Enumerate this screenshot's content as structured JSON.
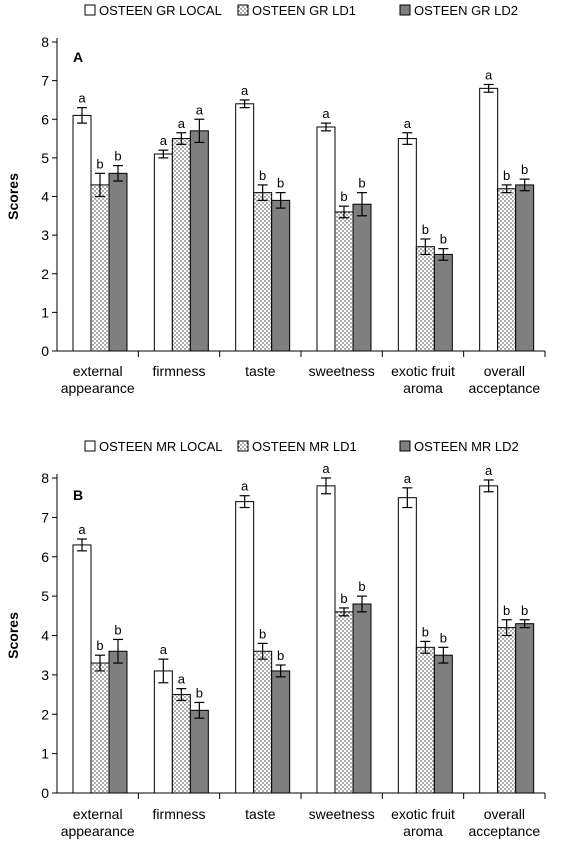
{
  "chart_data": [
    {
      "type": "bar",
      "panel": "A",
      "ylabel": "Scores",
      "ylim": [
        0,
        8
      ],
      "yticks": [
        0,
        1,
        2,
        3,
        4,
        5,
        6,
        7,
        8
      ],
      "categories": [
        [
          "external",
          "appearance"
        ],
        [
          "firmness"
        ],
        [
          "taste"
        ],
        [
          "sweetness"
        ],
        [
          "exotic fruit",
          "aroma"
        ],
        [
          "overall",
          "acceptance"
        ]
      ],
      "series": [
        {
          "name": "OSTEEN GR LOCAL",
          "pattern": "white",
          "values": [
            6.1,
            5.1,
            6.4,
            5.8,
            5.5,
            6.8
          ],
          "errors": [
            0.2,
            0.1,
            0.1,
            0.1,
            0.15,
            0.1
          ],
          "sig": [
            "a",
            "a",
            "a",
            "a",
            "a",
            "a"
          ]
        },
        {
          "name": "OSTEEN GR LD1",
          "pattern": "dots",
          "values": [
            4.3,
            5.5,
            4.1,
            3.6,
            2.7,
            4.2
          ],
          "errors": [
            0.3,
            0.15,
            0.2,
            0.15,
            0.2,
            0.1
          ],
          "sig": [
            "b",
            "a",
            "b",
            "b",
            "b",
            "b"
          ]
        },
        {
          "name": "OSTEEN GR LD2",
          "pattern": "gray",
          "values": [
            4.6,
            5.7,
            3.9,
            3.8,
            2.5,
            4.3
          ],
          "errors": [
            0.2,
            0.3,
            0.2,
            0.3,
            0.15,
            0.15
          ],
          "sig": [
            "b",
            "a",
            "b",
            "b",
            "b",
            "b"
          ]
        }
      ]
    },
    {
      "type": "bar",
      "panel": "B",
      "ylabel": "Scores",
      "ylim": [
        0,
        8
      ],
      "yticks": [
        0,
        1,
        2,
        3,
        4,
        5,
        6,
        7,
        8
      ],
      "categories": [
        [
          "external",
          "appearance"
        ],
        [
          "firmness"
        ],
        [
          "taste"
        ],
        [
          "sweetness"
        ],
        [
          "exotic fruit",
          "aroma"
        ],
        [
          "overall",
          "acceptance"
        ]
      ],
      "series": [
        {
          "name": "OSTEEN MR LOCAL",
          "pattern": "white",
          "values": [
            6.3,
            3.1,
            7.4,
            7.8,
            7.5,
            7.8
          ],
          "errors": [
            0.15,
            0.3,
            0.15,
            0.2,
            0.25,
            0.15
          ],
          "sig": [
            "a",
            "a",
            "a",
            "a",
            "a",
            "a"
          ]
        },
        {
          "name": "OSTEEN MR LD1",
          "pattern": "dots",
          "values": [
            3.3,
            2.5,
            3.6,
            4.6,
            3.7,
            4.2
          ],
          "errors": [
            0.2,
            0.15,
            0.2,
            0.1,
            0.15,
            0.2
          ],
          "sig": [
            "b",
            "a",
            "b",
            "b",
            "b",
            "b"
          ]
        },
        {
          "name": "OSTEEN MR LD2",
          "pattern": "gray",
          "values": [
            3.6,
            2.1,
            3.1,
            4.8,
            3.5,
            4.3
          ],
          "errors": [
            0.3,
            0.2,
            0.15,
            0.2,
            0.2,
            0.1
          ],
          "sig": [
            "b",
            "b",
            "b",
            "b",
            "b",
            "b"
          ]
        }
      ]
    }
  ],
  "colors": {
    "gray_bar": "#7f7f7f",
    "white_bar": "#ffffff",
    "outline": "#000000"
  }
}
